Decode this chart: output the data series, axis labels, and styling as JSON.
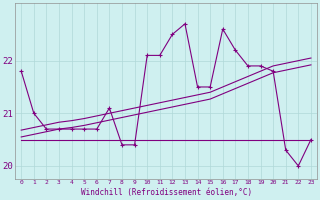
{
  "x_values": [
    0,
    1,
    2,
    3,
    4,
    5,
    6,
    7,
    8,
    9,
    10,
    11,
    12,
    13,
    14,
    15,
    16,
    17,
    18,
    19,
    20,
    21,
    22,
    23
  ],
  "y_main": [
    21.8,
    21.0,
    20.7,
    20.7,
    20.7,
    20.7,
    20.7,
    21.1,
    20.4,
    20.4,
    22.1,
    22.1,
    22.5,
    22.7,
    21.5,
    21.5,
    22.6,
    22.2,
    21.9,
    21.9,
    21.8,
    20.3,
    20.0,
    20.5
  ],
  "y_trend1": [
    20.55,
    20.6,
    20.65,
    20.7,
    20.73,
    20.77,
    20.82,
    20.87,
    20.92,
    20.97,
    21.02,
    21.07,
    21.12,
    21.17,
    21.22,
    21.27,
    21.37,
    21.47,
    21.57,
    21.67,
    21.77,
    21.82,
    21.87,
    21.92
  ],
  "y_trend2": [
    20.68,
    20.73,
    20.78,
    20.83,
    20.86,
    20.9,
    20.95,
    21.0,
    21.05,
    21.1,
    21.15,
    21.2,
    21.25,
    21.3,
    21.35,
    21.4,
    21.5,
    21.6,
    21.7,
    21.8,
    21.9,
    21.95,
    22.0,
    22.05
  ],
  "y_flat": [
    20.5,
    20.5,
    20.5,
    20.5,
    20.5,
    20.5,
    20.5,
    20.5,
    20.5,
    20.5,
    20.5,
    20.5,
    20.5,
    20.5,
    20.5,
    20.5,
    20.5,
    20.5,
    20.5,
    20.5,
    20.5,
    20.5,
    20.5,
    20.5
  ],
  "color": "#800080",
  "bg_color": "#cff0f0",
  "grid_color": "#b0d8d8",
  "xlabel": "Windchill (Refroidissement éolien,°C)",
  "ylim": [
    19.75,
    23.1
  ],
  "xlim": [
    -0.5,
    23.5
  ],
  "yticks": [
    20,
    21,
    22
  ],
  "xticks": [
    0,
    1,
    2,
    3,
    4,
    5,
    6,
    7,
    8,
    9,
    10,
    11,
    12,
    13,
    14,
    15,
    16,
    17,
    18,
    19,
    20,
    21,
    22,
    23
  ]
}
